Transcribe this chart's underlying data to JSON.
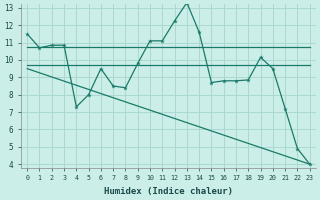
{
  "xlabel": "Humidex (Indice chaleur)",
  "bg_color": "#cceee8",
  "grid_color": "#aad8d0",
  "line_color": "#1a7a6a",
  "xlim": [
    -0.5,
    23.5
  ],
  "ylim": [
    3.8,
    13.2
  ],
  "yticks": [
    4,
    5,
    6,
    7,
    8,
    9,
    10,
    11,
    12,
    13
  ],
  "xticks": [
    0,
    1,
    2,
    3,
    4,
    5,
    6,
    7,
    8,
    9,
    10,
    11,
    12,
    13,
    14,
    15,
    16,
    17,
    18,
    19,
    20,
    21,
    22,
    23
  ],
  "line1_x": [
    0,
    1,
    2,
    3,
    4,
    5,
    6,
    7,
    8,
    9,
    10,
    11,
    12,
    13,
    14,
    15,
    16,
    17,
    18,
    19,
    20,
    21,
    22,
    23
  ],
  "line1_y": [
    11.5,
    10.7,
    10.85,
    10.85,
    7.3,
    8.0,
    9.5,
    8.5,
    8.4,
    9.8,
    11.1,
    11.1,
    12.25,
    13.3,
    11.6,
    8.7,
    8.8,
    8.8,
    8.85,
    10.15,
    9.5,
    7.2,
    4.9,
    4.0
  ],
  "line2_x": [
    0,
    1,
    2,
    3,
    4,
    5,
    6,
    7,
    8,
    9,
    10,
    11,
    12,
    13,
    14,
    15,
    16,
    17,
    18,
    19,
    20,
    21,
    22,
    23
  ],
  "line2_y": [
    10.75,
    10.75,
    10.75,
    10.75,
    10.75,
    10.75,
    10.75,
    10.75,
    10.75,
    10.75,
    10.75,
    10.75,
    10.75,
    10.75,
    10.75,
    10.75,
    10.75,
    10.75,
    10.75,
    10.75,
    10.75,
    10.75,
    10.75,
    10.75
  ],
  "line3_x": [
    0,
    23
  ],
  "line3_y": [
    9.7,
    9.7
  ],
  "line4_x": [
    0,
    23
  ],
  "line4_y": [
    9.5,
    4.0
  ]
}
